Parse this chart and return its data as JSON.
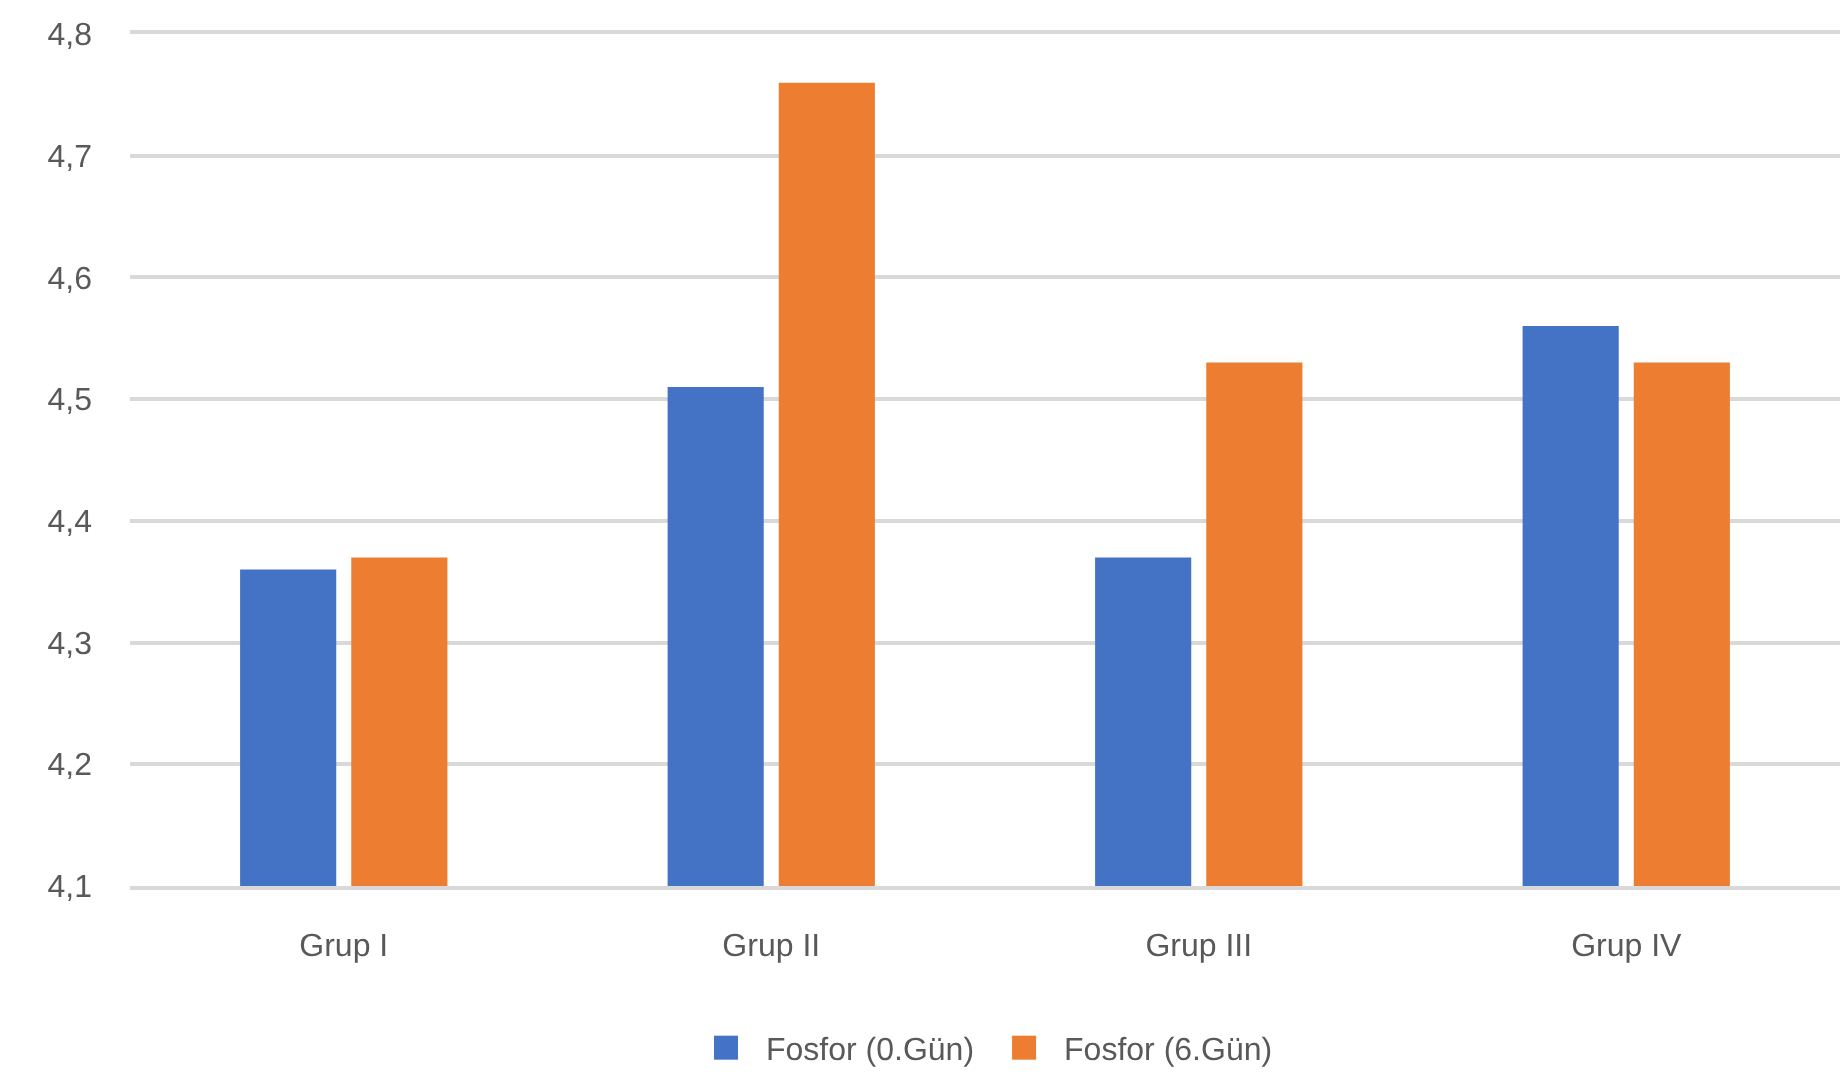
{
  "chart_data": {
    "type": "bar",
    "categories": [
      "Grup I",
      "Grup II",
      "Grup III",
      "Grup IV"
    ],
    "series": [
      {
        "name": "Fosfor (0.Gün)",
        "color": "#4472c4",
        "values": [
          4.36,
          4.51,
          4.37,
          4.56
        ]
      },
      {
        "name": "Fosfor (6.Gün)",
        "color": "#ed7d31",
        "values": [
          4.37,
          4.76,
          4.53,
          4.53
        ]
      }
    ],
    "ylim": [
      4.1,
      4.8
    ],
    "yticks": [
      {
        "value": 4.1,
        "label": "4,1"
      },
      {
        "value": 4.2,
        "label": "4,2"
      },
      {
        "value": 4.3,
        "label": "4,3"
      },
      {
        "value": 4.4,
        "label": "4,4"
      },
      {
        "value": 4.5,
        "label": "4,5"
      },
      {
        "value": 4.6,
        "label": "4,6"
      },
      {
        "value": 4.7,
        "label": "4,7"
      },
      {
        "value": 4.8,
        "label": "4,8"
      }
    ],
    "grid": "y",
    "legend": "bottom"
  }
}
